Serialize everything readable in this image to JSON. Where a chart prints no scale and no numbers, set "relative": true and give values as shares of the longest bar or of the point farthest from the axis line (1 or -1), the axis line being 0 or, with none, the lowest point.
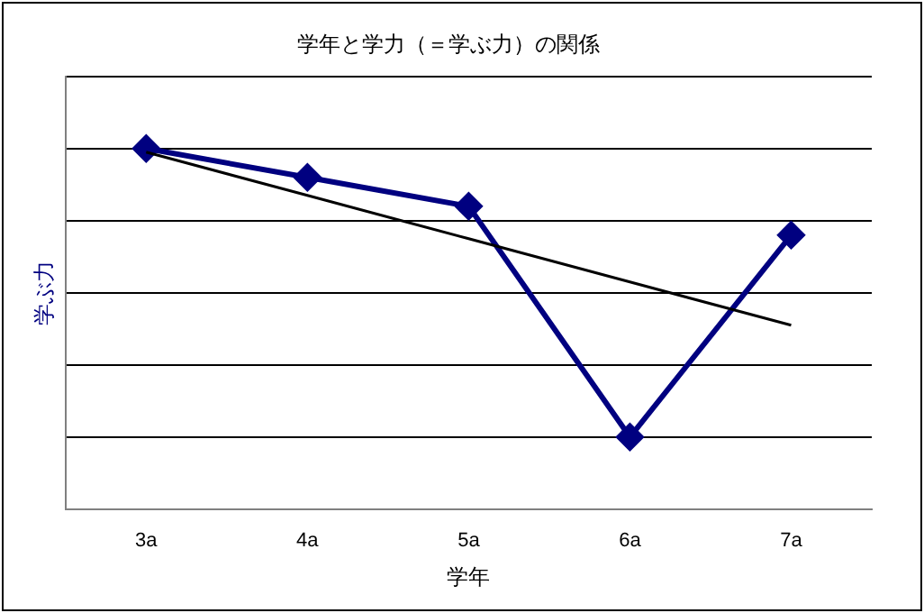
{
  "chart_data": {
    "type": "line",
    "title": "学年と学力（＝学ぶ力）の関係",
    "xlabel": "学年",
    "ylabel": "学ぶ力",
    "categories": [
      "3a",
      "4a",
      "5a",
      "6a",
      "7a"
    ],
    "relative": true,
    "grid": "y",
    "legend": false,
    "series": [
      {
        "color": "#000080",
        "values": [
          1,
          0.92,
          0.84,
          0.2,
          0.76
        ],
        "marker": "diamond",
        "line_style": "solid"
      },
      {
        "color": "#000000",
        "values": [
          0.99,
          0.87,
          0.75,
          0.63,
          0.51
        ],
        "marker": "none",
        "line_style": "solid"
      }
    ]
  }
}
